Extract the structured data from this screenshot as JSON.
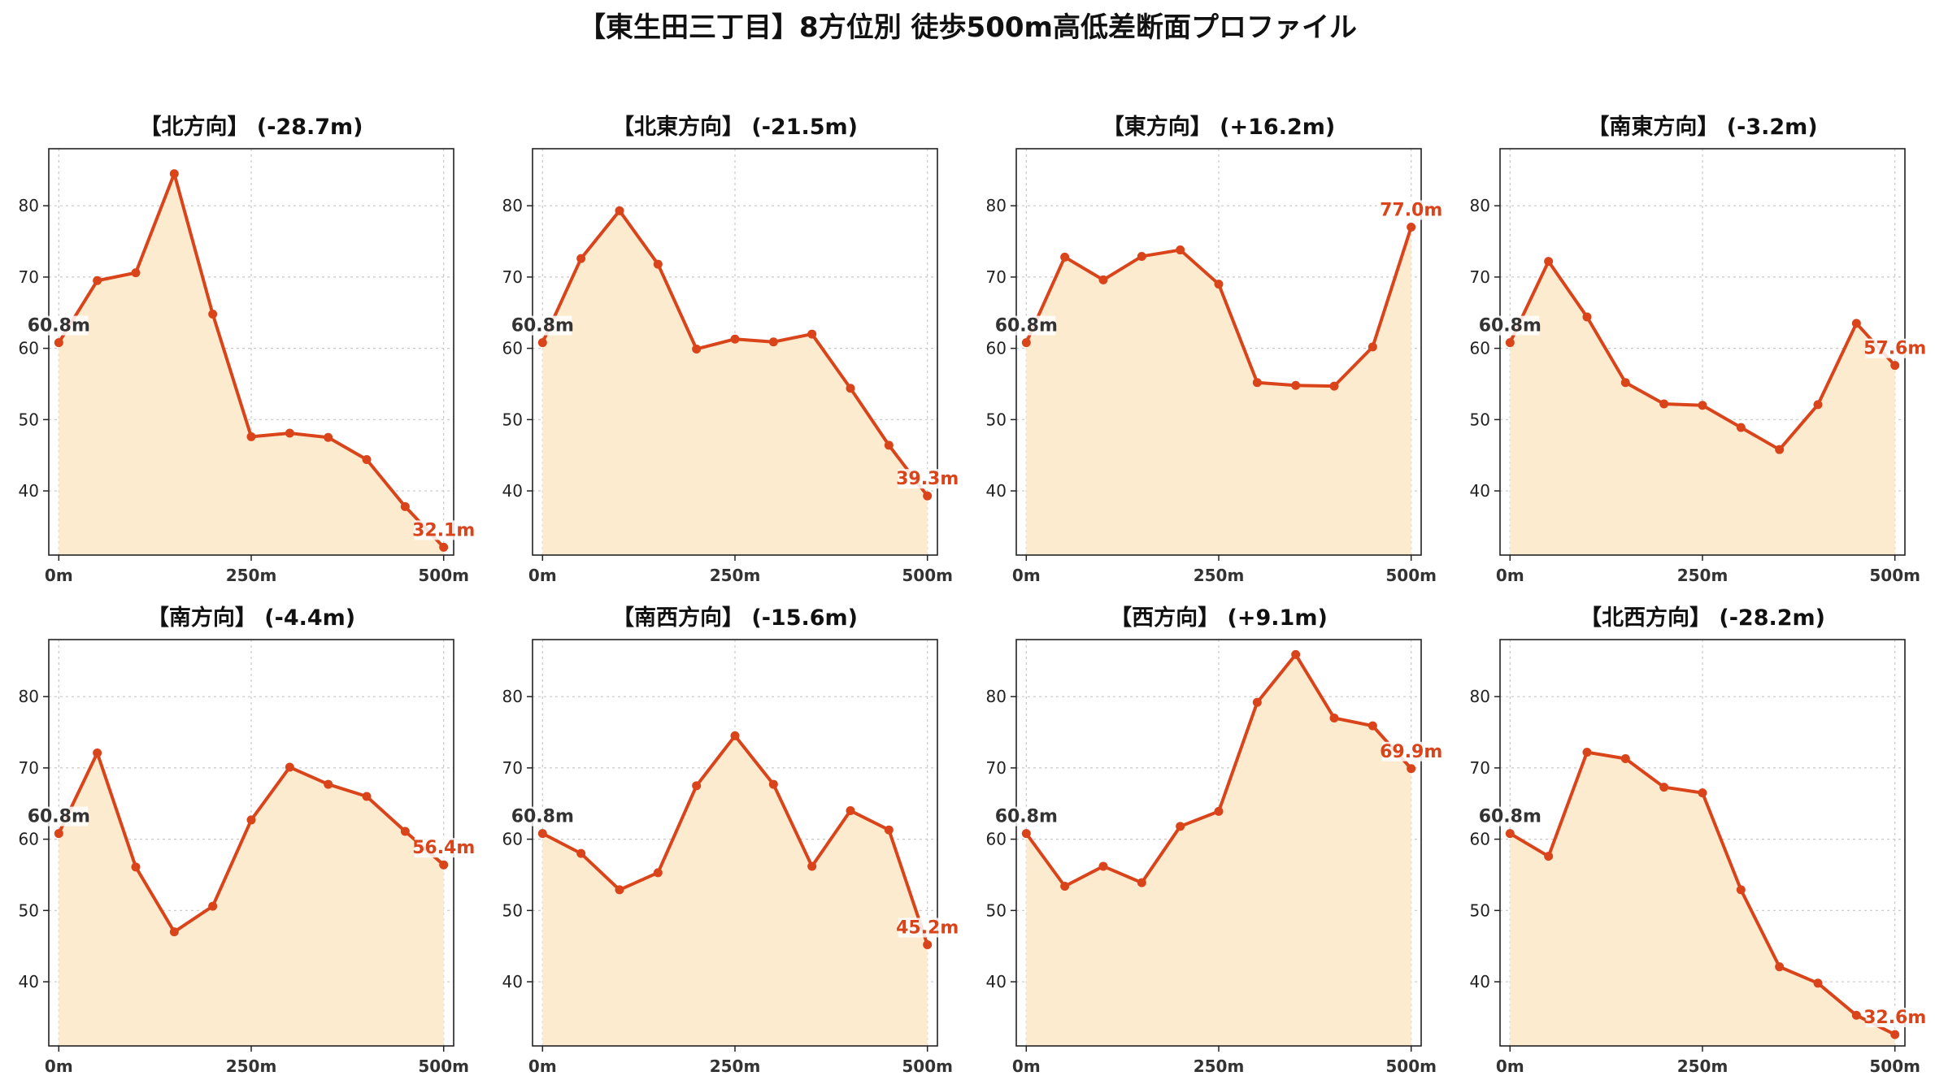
{
  "title": "【東生田三丁目】8方位別 徒歩500m高低差断面プロファイル",
  "colors": {
    "line": "#d9441b",
    "fill": "#fdebd0",
    "start_label": "#333333",
    "end_label": "#d9441b",
    "grid": "#c8c8c8",
    "axes": "#222222"
  },
  "chart_data": [
    {
      "type": "line",
      "title": "【北方向】 (-28.7m)",
      "x": [
        0,
        50,
        100,
        150,
        200,
        250,
        300,
        350,
        400,
        450,
        500
      ],
      "series": [
        {
          "values": [
            60.8,
            69.5,
            70.6,
            84.5,
            64.8,
            47.6,
            48.1,
            47.5,
            44.4,
            37.8,
            32.1
          ]
        }
      ],
      "start_label": "60.8m",
      "end_label": "32.1m",
      "xticks": [
        "0m",
        "250m",
        "500m"
      ],
      "yticks": [
        "40",
        "50",
        "60",
        "70",
        "80"
      ],
      "xlim": [
        -13,
        513
      ],
      "ylim": [
        31,
        88
      ],
      "grid": true
    },
    {
      "type": "line",
      "title": "【北東方向】 (-21.5m)",
      "x": [
        0,
        50,
        100,
        150,
        200,
        250,
        300,
        350,
        400,
        450,
        500
      ],
      "series": [
        {
          "values": [
            60.8,
            72.6,
            79.3,
            71.8,
            59.9,
            61.3,
            60.9,
            62.0,
            54.4,
            46.4,
            39.3
          ]
        }
      ],
      "start_label": "60.8m",
      "end_label": "39.3m",
      "xticks": [
        "0m",
        "250m",
        "500m"
      ],
      "yticks": [
        "40",
        "50",
        "60",
        "70",
        "80"
      ],
      "xlim": [
        -13,
        513
      ],
      "ylim": [
        31,
        88
      ],
      "grid": true
    },
    {
      "type": "line",
      "title": "【東方向】 (+16.2m)",
      "x": [
        0,
        50,
        100,
        150,
        200,
        250,
        300,
        350,
        400,
        450,
        500
      ],
      "series": [
        {
          "values": [
            60.8,
            72.8,
            69.6,
            72.9,
            73.8,
            69.0,
            55.2,
            54.8,
            54.7,
            60.2,
            77.0
          ]
        }
      ],
      "start_label": "60.8m",
      "end_label": "77.0m",
      "xticks": [
        "0m",
        "250m",
        "500m"
      ],
      "yticks": [
        "40",
        "50",
        "60",
        "70",
        "80"
      ],
      "xlim": [
        -13,
        513
      ],
      "ylim": [
        31,
        88
      ],
      "grid": true
    },
    {
      "type": "line",
      "title": "【南東方向】 (-3.2m)",
      "x": [
        0,
        50,
        100,
        150,
        200,
        250,
        300,
        350,
        400,
        450,
        500
      ],
      "series": [
        {
          "values": [
            60.8,
            72.2,
            64.4,
            55.2,
            52.2,
            52.0,
            48.9,
            45.8,
            52.1,
            63.5,
            57.6
          ]
        }
      ],
      "start_label": "60.8m",
      "end_label": "57.6m",
      "xticks": [
        "0m",
        "250m",
        "500m"
      ],
      "yticks": [
        "40",
        "50",
        "60",
        "70",
        "80"
      ],
      "xlim": [
        -13,
        513
      ],
      "ylim": [
        31,
        88
      ],
      "grid": true
    },
    {
      "type": "line",
      "title": "【南方向】 (-4.4m)",
      "x": [
        0,
        50,
        100,
        150,
        200,
        250,
        300,
        350,
        400,
        450,
        500
      ],
      "series": [
        {
          "values": [
            60.8,
            72.1,
            56.1,
            47.0,
            50.6,
            62.7,
            70.1,
            67.7,
            66.0,
            61.1,
            56.4
          ]
        }
      ],
      "start_label": "60.8m",
      "end_label": "56.4m",
      "xticks": [
        "0m",
        "250m",
        "500m"
      ],
      "yticks": [
        "40",
        "50",
        "60",
        "70",
        "80"
      ],
      "xlim": [
        -13,
        513
      ],
      "ylim": [
        31,
        88
      ],
      "grid": true
    },
    {
      "type": "line",
      "title": "【南西方向】 (-15.6m)",
      "x": [
        0,
        50,
        100,
        150,
        200,
        250,
        300,
        350,
        400,
        450,
        500
      ],
      "series": [
        {
          "values": [
            60.8,
            58.0,
            52.9,
            55.3,
            67.5,
            74.5,
            67.7,
            56.2,
            64.0,
            61.3,
            45.2
          ]
        }
      ],
      "start_label": "60.8m",
      "end_label": "45.2m",
      "xticks": [
        "0m",
        "250m",
        "500m"
      ],
      "yticks": [
        "40",
        "50",
        "60",
        "70",
        "80"
      ],
      "xlim": [
        -13,
        513
      ],
      "ylim": [
        31,
        88
      ],
      "grid": true
    },
    {
      "type": "line",
      "title": "【西方向】 (+9.1m)",
      "x": [
        0,
        50,
        100,
        150,
        200,
        250,
        300,
        350,
        400,
        450,
        500
      ],
      "series": [
        {
          "values": [
            60.8,
            53.4,
            56.2,
            53.9,
            61.8,
            63.9,
            79.2,
            85.9,
            77.0,
            75.9,
            69.9
          ]
        }
      ],
      "start_label": "60.8m",
      "end_label": "69.9m",
      "xticks": [
        "0m",
        "250m",
        "500m"
      ],
      "yticks": [
        "40",
        "50",
        "60",
        "70",
        "80"
      ],
      "xlim": [
        -13,
        513
      ],
      "ylim": [
        31,
        88
      ],
      "grid": true
    },
    {
      "type": "line",
      "title": "【北西方向】 (-28.2m)",
      "x": [
        0,
        50,
        100,
        150,
        200,
        250,
        300,
        350,
        400,
        450,
        500
      ],
      "series": [
        {
          "values": [
            60.8,
            57.6,
            72.2,
            71.3,
            67.3,
            66.5,
            52.9,
            42.1,
            39.8,
            35.3,
            32.6
          ]
        }
      ],
      "start_label": "60.8m",
      "end_label": "32.6m",
      "xticks": [
        "0m",
        "250m",
        "500m"
      ],
      "yticks": [
        "40",
        "50",
        "60",
        "70",
        "80"
      ],
      "xlim": [
        -13,
        513
      ],
      "ylim": [
        31,
        88
      ],
      "grid": true
    }
  ]
}
